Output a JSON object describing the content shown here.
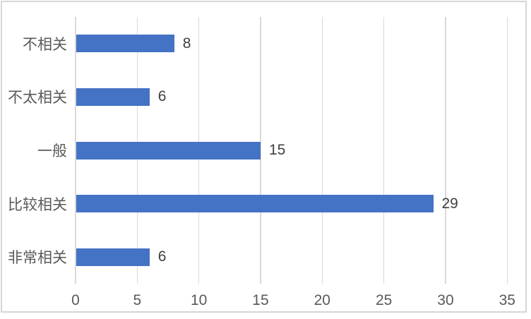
{
  "chart_data": {
    "type": "bar",
    "orientation": "horizontal",
    "title": "",
    "xlabel": "",
    "ylabel": "",
    "categories": [
      "不相关",
      "不太相关",
      "一般",
      "比较相关",
      "非常相关"
    ],
    "values": [
      8,
      6,
      15,
      29,
      6
    ],
    "data_labels": [
      "8",
      "6",
      "15",
      "29",
      "6"
    ],
    "x_ticks": [
      "0",
      "5",
      "10",
      "15",
      "20",
      "25",
      "30",
      "35"
    ],
    "xlim": [
      0,
      35
    ],
    "grid": true,
    "legend": false,
    "colors": {
      "bar": "#4472C4",
      "gridline": "#D9D9D9",
      "frame_border": "#D6D6D6",
      "axis_text": "#595959",
      "data_label_text": "#404040",
      "background": "#FFFFFF"
    }
  }
}
